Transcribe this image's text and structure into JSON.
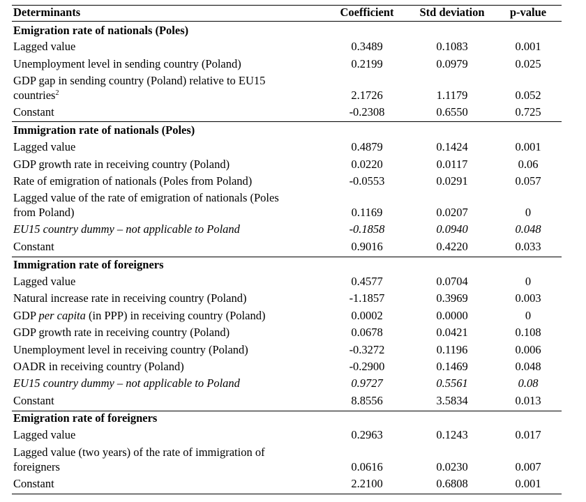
{
  "header": {
    "determinants": "Determinants",
    "coefficient": "Coefficient",
    "std_deviation": "Std deviation",
    "p_value": "p-value"
  },
  "sections": [
    {
      "title": "Emigration rate of nationals (Poles)",
      "rows": [
        {
          "label": "Lagged value",
          "coef": "0.3489",
          "std": "0.1083",
          "p": "0.001"
        },
        {
          "label": "Unemployment level in sending country (Poland)",
          "coef": "0.2199",
          "std": "0.0979",
          "p": "0.025"
        },
        {
          "label_line1": "GDP gap in sending country (Poland) relative to EU15",
          "label_line2": "countries",
          "sup": "2",
          "coef": "2.1726",
          "std": "1.1179",
          "p": "0.052"
        },
        {
          "label": "Constant",
          "coef": "-0.2308",
          "std": "0.6550",
          "p": "0.725"
        }
      ]
    },
    {
      "title": "Immigration rate of nationals (Poles)",
      "rows": [
        {
          "label": "Lagged value",
          "coef": "0.4879",
          "std": "0.1424",
          "p": "0.001"
        },
        {
          "label": "GDP growth rate in receiving country (Poland)",
          "coef": "0.0220",
          "std": "0.0117",
          "p": "0.06"
        },
        {
          "label": "Rate of emigration of nationals (Poles from Poland)",
          "coef": "-0.0553",
          "std": "0.0291",
          "p": "0.057"
        },
        {
          "label_line1": "Lagged value of the rate of emigration of nationals (Poles",
          "label_line2": "from Poland)",
          "coef": "0.1169",
          "std": "0.0207",
          "p": "0"
        },
        {
          "label": "EU15 country dummy – not applicable to Poland",
          "coef": "-0.1858",
          "std": "0.0940",
          "p": "0.048"
        },
        {
          "label": "Constant",
          "coef": "0.9016",
          "std": "0.4220",
          "p": "0.033"
        }
      ]
    },
    {
      "title": "Immigration rate of foreigners",
      "rows": [
        {
          "label": "Lagged value",
          "coef": "0.4577",
          "std": "0.0704",
          "p": "0"
        },
        {
          "label": "Natural increase rate in receiving country (Poland)",
          "coef": "-1.1857",
          "std": "0.3969",
          "p": "0.003"
        },
        {
          "label_a": "GDP ",
          "label_b": "per capita",
          "label_c": " (in PPP) in receiving country (Poland)",
          "coef": "0.0002",
          "std": "0.0000",
          "p": "0"
        },
        {
          "label": "GDP growth rate in receiving country (Poland)",
          "coef": "0.0678",
          "std": "0.0421",
          "p": "0.108"
        },
        {
          "label": "Unemployment level in receiving country (Poland)",
          "coef": "-0.3272",
          "std": "0.1196",
          "p": "0.006"
        },
        {
          "label": "OADR in receiving country (Poland)",
          "coef": "-0.2900",
          "std": "0.1469",
          "p": "0.048"
        },
        {
          "label": "EU15 country dummy – not applicable to Poland",
          "coef": "0.9727",
          "std": "0.5561",
          "p": "0.08"
        },
        {
          "label": "Constant",
          "coef": "8.8556",
          "std": "3.5834",
          "p": "0.013"
        }
      ]
    },
    {
      "title": "Emigration rate of foreigners",
      "rows": [
        {
          "label": "Lagged value",
          "coef": "0.2963",
          "std": "0.1243",
          "p": "0.017"
        },
        {
          "label_line1": "Lagged value (two years) of the rate of immigration of",
          "label_line2": "foreigners",
          "coef": "0.0616",
          "std": "0.0230",
          "p": "0.007"
        },
        {
          "label": "Constant",
          "coef": "2.2100",
          "std": "0.6808",
          "p": "0.001"
        }
      ]
    }
  ]
}
